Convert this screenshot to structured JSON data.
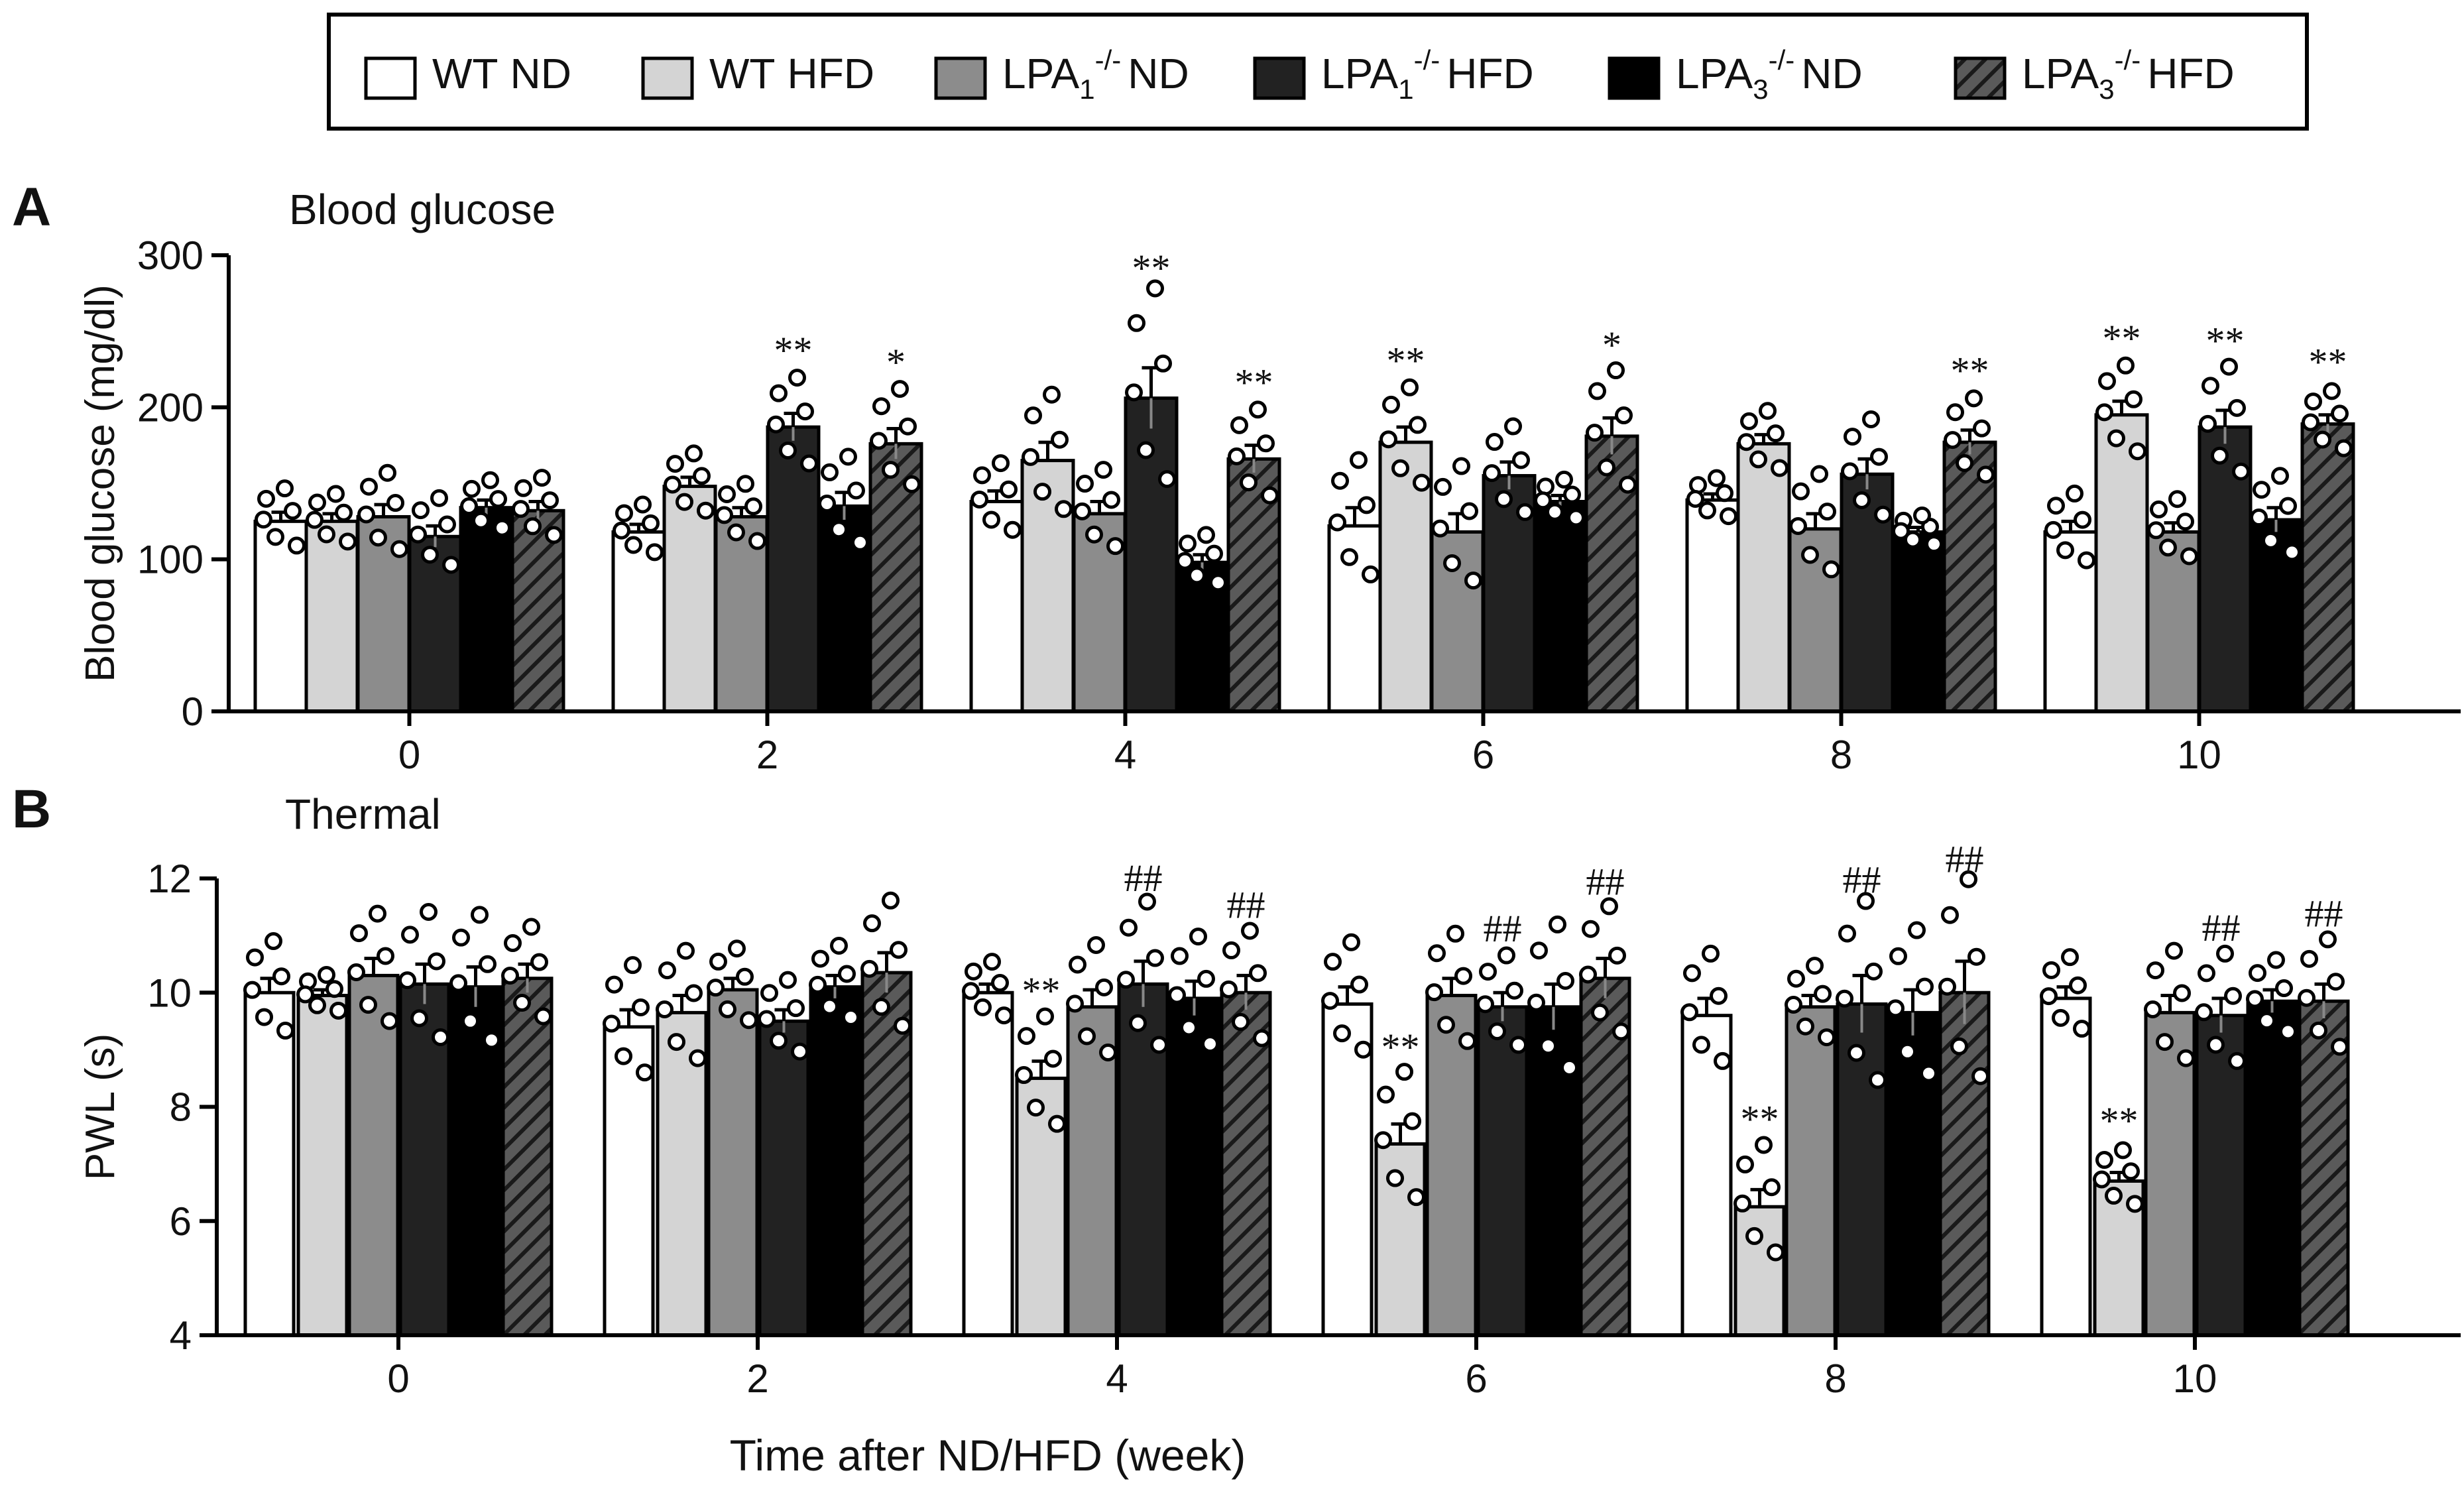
{
  "legend": {
    "entries": [
      {
        "label": "WT ND",
        "base": "WT",
        "sub": "",
        "sup": "",
        "tail": "ND",
        "fill": "#ffffff",
        "hatch": false
      },
      {
        "label": "WT HFD",
        "base": "WT",
        "sub": "",
        "sup": "",
        "tail": "HFD",
        "fill": "#d4d4d4",
        "hatch": false
      },
      {
        "label": "LPA1-/- ND",
        "base": "LPA",
        "sub": "1",
        "sup": "-/-",
        "tail": "ND",
        "fill": "#8c8c8c",
        "hatch": false
      },
      {
        "label": "LPA1-/- HFD",
        "base": "LPA",
        "sub": "1",
        "sup": "-/-",
        "tail": "HFD",
        "fill": "#222222",
        "hatch": false
      },
      {
        "label": "LPA3-/- ND",
        "base": "LPA",
        "sub": "3",
        "sup": "-/-",
        "tail": "ND",
        "fill": "#000000",
        "hatch": false
      },
      {
        "label": "LPA3-/- HFD",
        "base": "LPA",
        "sub": "3",
        "sup": "-/-",
        "tail": "HFD",
        "fill": "#555555",
        "hatch": true
      }
    ]
  },
  "common_xlabel": "Time after ND/HFD (week)",
  "chart_data": [
    {
      "panel": "A",
      "title": "Blood glucose",
      "type": "bar",
      "ylabel": "Blood glucose (mg/dl)",
      "xlabel": "",
      "ylim": [
        0,
        300
      ],
      "yticks": [
        0,
        100,
        200,
        300
      ],
      "categories": [
        "0",
        "2",
        "4",
        "6",
        "8",
        "10"
      ],
      "series": [
        {
          "name": "WT ND",
          "values": [
            125,
            118,
            138,
            122,
            139,
            118
          ],
          "sem": [
            6,
            5,
            7,
            12,
            4,
            7
          ]
        },
        {
          "name": "WT HFD",
          "values": [
            125,
            148,
            165,
            177,
            176,
            195
          ],
          "sem": [
            5,
            6,
            12,
            10,
            6,
            9
          ]
        },
        {
          "name": "LPA1-/- ND",
          "values": [
            128,
            128,
            130,
            118,
            120,
            118
          ],
          "sem": [
            8,
            6,
            8,
            12,
            10,
            6
          ]
        },
        {
          "name": "LPA1-/- HFD",
          "values": [
            115,
            187,
            206,
            155,
            156,
            187
          ],
          "sem": [
            7,
            9,
            20,
            9,
            10,
            11
          ]
        },
        {
          "name": "LPA3-/- ND",
          "values": [
            134,
            135,
            98,
            138,
            118,
            126
          ],
          "sem": [
            5,
            9,
            5,
            4,
            3,
            8
          ]
        },
        {
          "name": "LPA3-/- HFD",
          "values": [
            132,
            176,
            166,
            181,
            177,
            189
          ],
          "sem": [
            6,
            10,
            9,
            12,
            8,
            6
          ]
        }
      ],
      "annotations": [
        {
          "category": "2",
          "series": "LPA1-/- HFD",
          "text": "**"
        },
        {
          "category": "2",
          "series": "LPA3-/- HFD",
          "text": "*"
        },
        {
          "category": "4",
          "series": "LPA1-/- HFD",
          "text": "**"
        },
        {
          "category": "4",
          "series": "LPA3-/- HFD",
          "text": "**"
        },
        {
          "category": "6",
          "series": "WT HFD",
          "text": "**"
        },
        {
          "category": "6",
          "series": "LPA3-/- HFD",
          "text": "*"
        },
        {
          "category": "8",
          "series": "LPA3-/- HFD",
          "text": "**"
        },
        {
          "category": "10",
          "series": "WT HFD",
          "text": "**"
        },
        {
          "category": "10",
          "series": "LPA1-/- HFD",
          "text": "**"
        },
        {
          "category": "10",
          "series": "LPA3-/- HFD",
          "text": "**"
        }
      ]
    },
    {
      "panel": "B",
      "title": "Thermal",
      "type": "bar",
      "ylabel": "PWL (s)",
      "xlabel": "",
      "ylim": [
        4,
        12
      ],
      "yticks": [
        4,
        6,
        8,
        10,
        12
      ],
      "categories": [
        "0",
        "2",
        "4",
        "6",
        "8",
        "10"
      ],
      "series": [
        {
          "name": "WT ND",
          "values": [
            10.0,
            9.4,
            10.0,
            9.8,
            9.6,
            9.9
          ],
          "sem": [
            0.25,
            0.3,
            0.15,
            0.3,
            0.3,
            0.2
          ]
        },
        {
          "name": "WT HFD",
          "values": [
            9.95,
            9.65,
            8.5,
            7.35,
            6.25,
            6.7
          ],
          "sem": [
            0.1,
            0.3,
            0.3,
            0.35,
            0.3,
            0.15
          ]
        },
        {
          "name": "LPA1-/- ND",
          "values": [
            10.3,
            10.05,
            9.75,
            9.95,
            9.75,
            9.65
          ],
          "sem": [
            0.3,
            0.2,
            0.3,
            0.3,
            0.2,
            0.3
          ]
        },
        {
          "name": "LPA1-/- HFD",
          "values": [
            10.15,
            9.5,
            10.15,
            9.75,
            9.8,
            9.6
          ],
          "sem": [
            0.35,
            0.2,
            0.4,
            0.25,
            0.5,
            0.3
          ]
        },
        {
          "name": "LPA3-/- ND",
          "values": [
            10.1,
            10.1,
            9.9,
            9.75,
            9.65,
            9.85
          ],
          "sem": [
            0.35,
            0.2,
            0.3,
            0.4,
            0.4,
            0.2
          ]
        },
        {
          "name": "LPA3-/- HFD",
          "values": [
            10.25,
            10.35,
            10.0,
            10.25,
            10.0,
            9.85
          ],
          "sem": [
            0.25,
            0.35,
            0.3,
            0.35,
            0.55,
            0.3
          ]
        }
      ],
      "annotations": [
        {
          "category": "4",
          "series": "WT HFD",
          "text": "**"
        },
        {
          "category": "4",
          "series": "LPA1-/- HFD",
          "text": "##"
        },
        {
          "category": "4",
          "series": "LPA3-/- HFD",
          "text": "##"
        },
        {
          "category": "6",
          "series": "WT HFD",
          "text": "**"
        },
        {
          "category": "6",
          "series": "LPA1-/- HFD",
          "text": "##"
        },
        {
          "category": "6",
          "series": "LPA3-/- HFD",
          "text": "##"
        },
        {
          "category": "8",
          "series": "WT HFD",
          "text": "**"
        },
        {
          "category": "8",
          "series": "LPA1-/- HFD",
          "text": "##"
        },
        {
          "category": "8",
          "series": "LPA3-/- HFD",
          "text": "##"
        },
        {
          "category": "10",
          "series": "WT HFD",
          "text": "**"
        },
        {
          "category": "10",
          "series": "LPA1-/- HFD",
          "text": "##"
        },
        {
          "category": "10",
          "series": "LPA3-/- HFD",
          "text": "##"
        }
      ]
    }
  ]
}
